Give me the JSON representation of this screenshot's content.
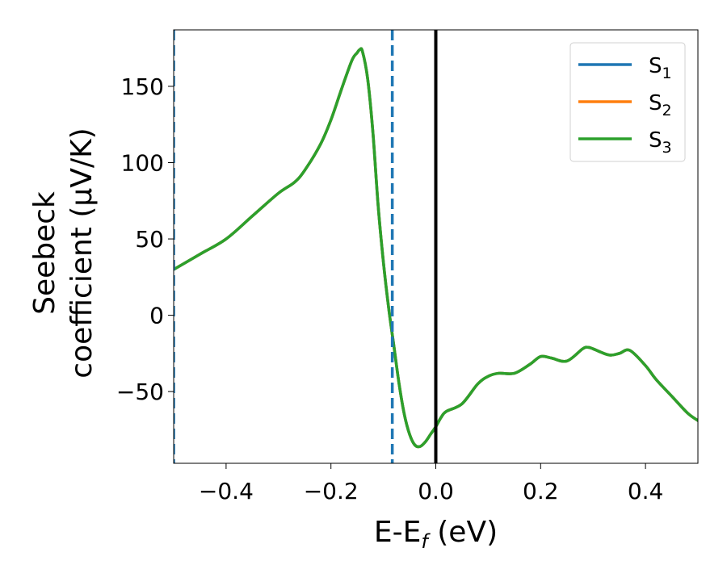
{
  "chart_data": {
    "type": "line",
    "xlabel": "E-E",
    "xlabel_sub": "f",
    "xlabel_unit": " (eV)",
    "ylabel_line1": "Seebeck",
    "ylabel_line2": "coefficient  (μV/K)",
    "xlim": [
      -0.5,
      0.5
    ],
    "ylim": [
      -97,
      187
    ],
    "xticks": [
      -0.4,
      -0.2,
      0.0,
      0.2,
      0.4
    ],
    "xtick_labels": [
      "−0.4",
      "−0.2",
      "0.0",
      "0.2",
      "0.4"
    ],
    "yticks": [
      -50,
      0,
      50,
      100,
      150
    ],
    "ytick_labels": [
      "−50",
      "0",
      "50",
      "100",
      "150"
    ],
    "grid": false,
    "legend_position": "top-right",
    "vlines": [
      {
        "x": -0.5,
        "style": "dashed",
        "color": "#1f77b4"
      },
      {
        "x": -0.083,
        "style": "dashed",
        "color": "#1f77b4"
      },
      {
        "x": 0.0,
        "style": "solid",
        "color": "#000000"
      }
    ],
    "x": [
      -0.5,
      -0.45,
      -0.4,
      -0.35,
      -0.3,
      -0.27,
      -0.25,
      -0.22,
      -0.2,
      -0.18,
      -0.16,
      -0.15,
      -0.145,
      -0.14,
      -0.13,
      -0.12,
      -0.11,
      -0.1,
      -0.09,
      -0.08,
      -0.07,
      -0.06,
      -0.05,
      -0.04,
      -0.03,
      -0.02,
      -0.01,
      0.0,
      0.01,
      0.02,
      0.05,
      0.08,
      0.1,
      0.12,
      0.15,
      0.18,
      0.2,
      0.22,
      0.25,
      0.28,
      0.29,
      0.3,
      0.33,
      0.35,
      0.37,
      0.4,
      0.42,
      0.45,
      0.48,
      0.5
    ],
    "series": [
      {
        "name": "S",
        "sub": "1",
        "color": "#1f77b4",
        "values": [
          30,
          40,
          50,
          65,
          80,
          87,
          95,
          112,
          128,
          148,
          167,
          172,
          174,
          173,
          155,
          120,
          72,
          35,
          5,
          -20,
          -45,
          -65,
          -78,
          -85,
          -86,
          -83,
          -78,
          -73,
          -67,
          -63,
          -58,
          -45,
          -40,
          -38,
          -38,
          -32,
          -27,
          -28,
          -30,
          -22,
          -21,
          -22,
          -26,
          -25,
          -23,
          -33,
          -42,
          -53,
          -64,
          -69
        ]
      },
      {
        "name": "S",
        "sub": "2",
        "color": "#ff7f0e",
        "values": [
          30,
          40,
          50,
          65,
          80,
          87,
          95,
          112,
          128,
          148,
          167,
          172,
          174,
          173,
          155,
          120,
          72,
          35,
          5,
          -20,
          -45,
          -65,
          -78,
          -85,
          -86,
          -83,
          -78,
          -73,
          -67,
          -63,
          -58,
          -45,
          -40,
          -38,
          -38,
          -32,
          -27,
          -28,
          -30,
          -22,
          -21,
          -22,
          -26,
          -25,
          -23,
          -33,
          -42,
          -53,
          -64,
          -69
        ]
      },
      {
        "name": "S",
        "sub": "3",
        "color": "#2ca02c",
        "values": [
          30,
          40,
          50,
          65,
          80,
          87,
          95,
          112,
          128,
          148,
          167,
          172,
          174,
          173,
          155,
          120,
          72,
          35,
          5,
          -20,
          -45,
          -65,
          -78,
          -85,
          -86,
          -83,
          -78,
          -73,
          -67,
          -63,
          -58,
          -45,
          -40,
          -38,
          -38,
          -32,
          -27,
          -28,
          -30,
          -22,
          -21,
          -22,
          -26,
          -25,
          -23,
          -33,
          -42,
          -53,
          -64,
          -69
        ]
      }
    ]
  }
}
